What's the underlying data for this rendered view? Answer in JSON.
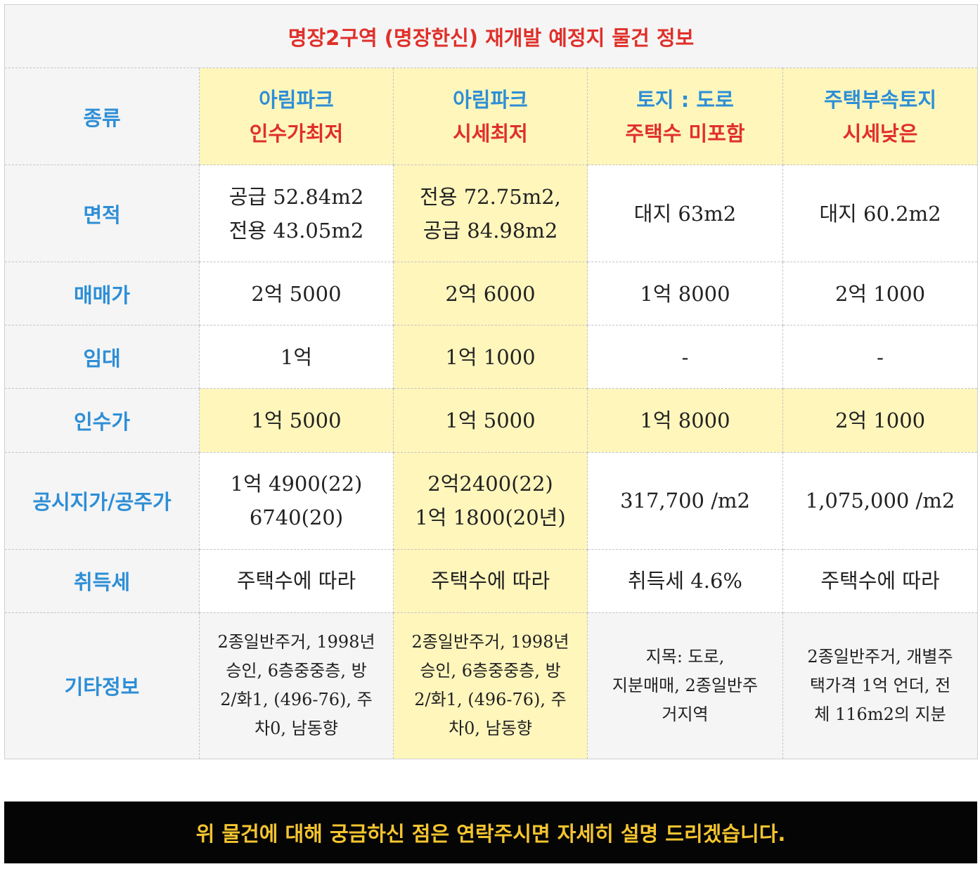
{
  "title": "명장2구역 (명장한신) 재개발 예정지 물건 정보",
  "row_labels": {
    "type": "종류",
    "area": "면적",
    "sale_price": "매매가",
    "lease": "임대",
    "takeover": "인수가",
    "official_price": "공시지가/공주가",
    "acquisition_tax": "취득세",
    "other_info": "기타정보"
  },
  "properties": [
    {
      "type_main": "아림파크",
      "type_sub": "인수가최저",
      "area": [
        "공급 52.84m2",
        "전용 43.05m2"
      ],
      "sale_price": "2억 5000",
      "lease": "1억",
      "takeover": "1억 5000",
      "official_price": [
        "1억 4900(22)",
        "6740(20)"
      ],
      "acquisition_tax": "주택수에 따라",
      "other_info": [
        "2종일반주거, 1998년",
        "승인, 6층중중층, 방",
        "2/화1, (496-76), 주",
        "차0, 남동향"
      ]
    },
    {
      "type_main": "아림파크",
      "type_sub": "시세최저",
      "area": [
        "전용 72.75m2,",
        "공급 84.98m2"
      ],
      "sale_price": "2억 6000",
      "lease": "1억 1000",
      "takeover": "1억 5000",
      "official_price": [
        "2억2400(22)",
        "1억 1800(20년)"
      ],
      "acquisition_tax": "주택수에 따라",
      "other_info": [
        "2종일반주거, 1998년",
        "승인, 6층중중층, 방",
        "2/화1, (496-76), 주",
        "차0, 남동향"
      ]
    },
    {
      "type_main": "토지 : 도로",
      "type_sub": "주택수 미포함",
      "area": [
        "대지 63m2"
      ],
      "sale_price": "1억 8000",
      "lease": "-",
      "takeover": "1억 8000",
      "official_price": [
        "317,700 /m2"
      ],
      "acquisition_tax": "취득세 4.6%",
      "other_info": [
        "지목: 도로,",
        "지분매매, 2종일반주",
        "거지역"
      ]
    },
    {
      "type_main": "주택부속토지",
      "type_sub": "시세낮은",
      "area": [
        "대지 60.2m2"
      ],
      "sale_price": "2억 1000",
      "lease": "-",
      "takeover": "2억 1000",
      "official_price": [
        "1,075,000 /m2"
      ],
      "acquisition_tax": "주택수에 따라",
      "other_info": [
        "2종일반주거, 개별주",
        "택가격 1억 언더, 전",
        "체 116m2의 지분"
      ]
    }
  ],
  "footer": "위 물건에 대해 궁금하신 점은 연락주시면 자세히 설명 드리겠습니다.",
  "colors": {
    "title_red": "#e0302a",
    "header_blue": "#2d8ed6",
    "highlight_yellow": "#fff6bc",
    "header_gray": "#f5f5f5",
    "footer_bg": "#050505",
    "footer_text": "#f4c430"
  }
}
